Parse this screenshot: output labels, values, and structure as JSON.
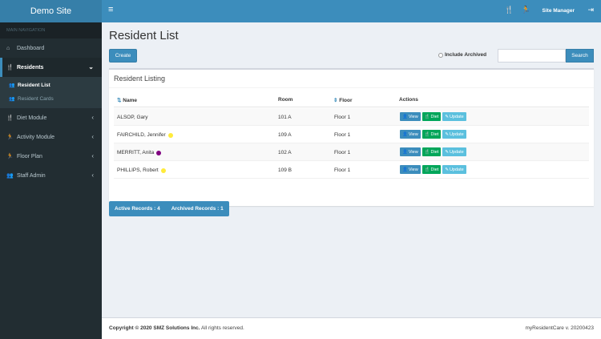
{
  "app": {
    "site_name": "Demo Site"
  },
  "topbar": {
    "user_label": "Site Manager"
  },
  "sidebar": {
    "header": "MAIN NAVIGATION",
    "items": [
      {
        "label": "Dashboard",
        "icon": "dashboard-icon"
      },
      {
        "label": "Residents",
        "icon": "cutlery-icon",
        "active": true
      },
      {
        "label": "Diet Module",
        "icon": "cutlery-icon"
      },
      {
        "label": "Activity Module",
        "icon": "activity-icon"
      },
      {
        "label": "Floor Plan",
        "icon": "running-icon"
      },
      {
        "label": "Staff Admin",
        "icon": "users-cog-icon"
      }
    ],
    "subitems": [
      {
        "label": "Resident List",
        "active": true
      },
      {
        "label": "Resident Cards"
      }
    ]
  },
  "page": {
    "title": "Resident List",
    "create_label": "Create",
    "include_archived_label": "Include Archived",
    "search_label": "Search",
    "search_value": ""
  },
  "listing": {
    "title": "Resident Listing",
    "columns": {
      "name": "Name",
      "room": "Room",
      "floor": "Floor",
      "actions": "Actions"
    },
    "action_labels": {
      "view": "View",
      "diet": "Diet",
      "update": "Update"
    },
    "rows": [
      {
        "name": "ALSOP, Gary",
        "room": "101 A",
        "floor": "Floor 1",
        "dot": null
      },
      {
        "name": "FAIRCHILD, Jennifer",
        "room": "109 A",
        "floor": "Floor 1",
        "dot": "#ffeb3b"
      },
      {
        "name": "MERRITT, Anita",
        "room": "102 A",
        "floor": "Floor 1",
        "dot": "#800080"
      },
      {
        "name": "PHILLIPS, Robert",
        "room": "109 B",
        "floor": "Floor 1",
        "dot": "#ffeb3b"
      }
    ]
  },
  "records": {
    "active": "Active Records : 4",
    "archived": "Archived Records : 1"
  },
  "footer": {
    "copyright_prefix": "Copyright © 2020",
    "company": "SMZ Solutions Inc.",
    "rights": "All rights reserved.",
    "version": "myResidentCare v. 20200423"
  },
  "colors": {
    "primary": "#3c8dbc",
    "sidebar": "#222d32",
    "success": "#00a65a",
    "info": "#5bc0de"
  }
}
